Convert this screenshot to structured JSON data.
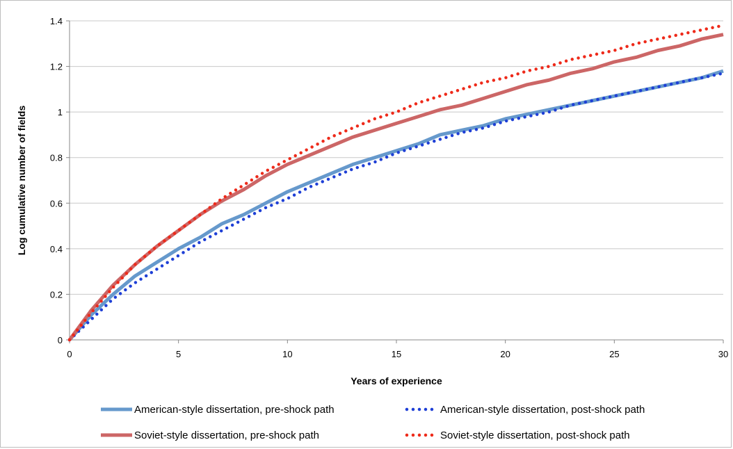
{
  "chart_data": {
    "type": "line",
    "title": "",
    "xlabel": "Years of experience",
    "ylabel": "Log cumulative number of fields",
    "xlim": [
      0,
      30
    ],
    "ylim": [
      0,
      1.4
    ],
    "x_ticks": [
      0,
      5,
      10,
      15,
      20,
      25,
      30
    ],
    "y_ticks": [
      0,
      0.2,
      0.4,
      0.6,
      0.8,
      1,
      1.2,
      1.4
    ],
    "x_tick_labels": [
      "0",
      "5",
      "10",
      "15",
      "20",
      "25",
      "30"
    ],
    "y_tick_labels": [
      "0",
      "0.2",
      "0.4",
      "0.6",
      "0.8",
      "1",
      "1.2",
      "1.4"
    ],
    "grid": "horizontal",
    "legend_position": "bottom",
    "x": [
      0,
      1,
      2,
      3,
      4,
      5,
      6,
      7,
      8,
      9,
      10,
      11,
      12,
      13,
      14,
      15,
      16,
      17,
      18,
      19,
      20,
      21,
      22,
      23,
      24,
      25,
      26,
      27,
      28,
      29,
      30
    ],
    "series": [
      {
        "name": "American-style dissertation, pre-shock path",
        "color": "#6699cc",
        "style": "solid",
        "values": [
          0,
          0.11,
          0.2,
          0.28,
          0.34,
          0.4,
          0.45,
          0.51,
          0.55,
          0.6,
          0.65,
          0.69,
          0.73,
          0.77,
          0.8,
          0.83,
          0.86,
          0.9,
          0.92,
          0.94,
          0.97,
          0.99,
          1.01,
          1.03,
          1.05,
          1.07,
          1.09,
          1.11,
          1.13,
          1.15,
          1.18
        ]
      },
      {
        "name": "American-style dissertation, post-shock path",
        "color": "#1e3fd6",
        "style": "dotted",
        "values": [
          0,
          0.09,
          0.18,
          0.25,
          0.31,
          0.37,
          0.43,
          0.48,
          0.53,
          0.58,
          0.62,
          0.67,
          0.71,
          0.75,
          0.78,
          0.82,
          0.85,
          0.88,
          0.91,
          0.93,
          0.96,
          0.98,
          1.0,
          1.03,
          1.05,
          1.07,
          1.09,
          1.11,
          1.13,
          1.15,
          1.17
        ]
      },
      {
        "name": "Soviet-style dissertation, pre-shock path",
        "color": "#cc6666",
        "style": "solid",
        "values": [
          0,
          0.13,
          0.24,
          0.33,
          0.41,
          0.48,
          0.55,
          0.61,
          0.66,
          0.72,
          0.77,
          0.81,
          0.85,
          0.89,
          0.92,
          0.95,
          0.98,
          1.01,
          1.03,
          1.06,
          1.09,
          1.12,
          1.14,
          1.17,
          1.19,
          1.22,
          1.24,
          1.27,
          1.29,
          1.32,
          1.34
        ]
      },
      {
        "name": "Soviet-style dissertation, post-shock path",
        "color": "#ee2a1a",
        "style": "dotted",
        "values": [
          0,
          0.12,
          0.23,
          0.33,
          0.41,
          0.48,
          0.55,
          0.62,
          0.68,
          0.74,
          0.79,
          0.84,
          0.89,
          0.93,
          0.97,
          1.0,
          1.04,
          1.07,
          1.1,
          1.13,
          1.15,
          1.18,
          1.2,
          1.23,
          1.25,
          1.27,
          1.3,
          1.32,
          1.34,
          1.36,
          1.38
        ]
      }
    ]
  }
}
